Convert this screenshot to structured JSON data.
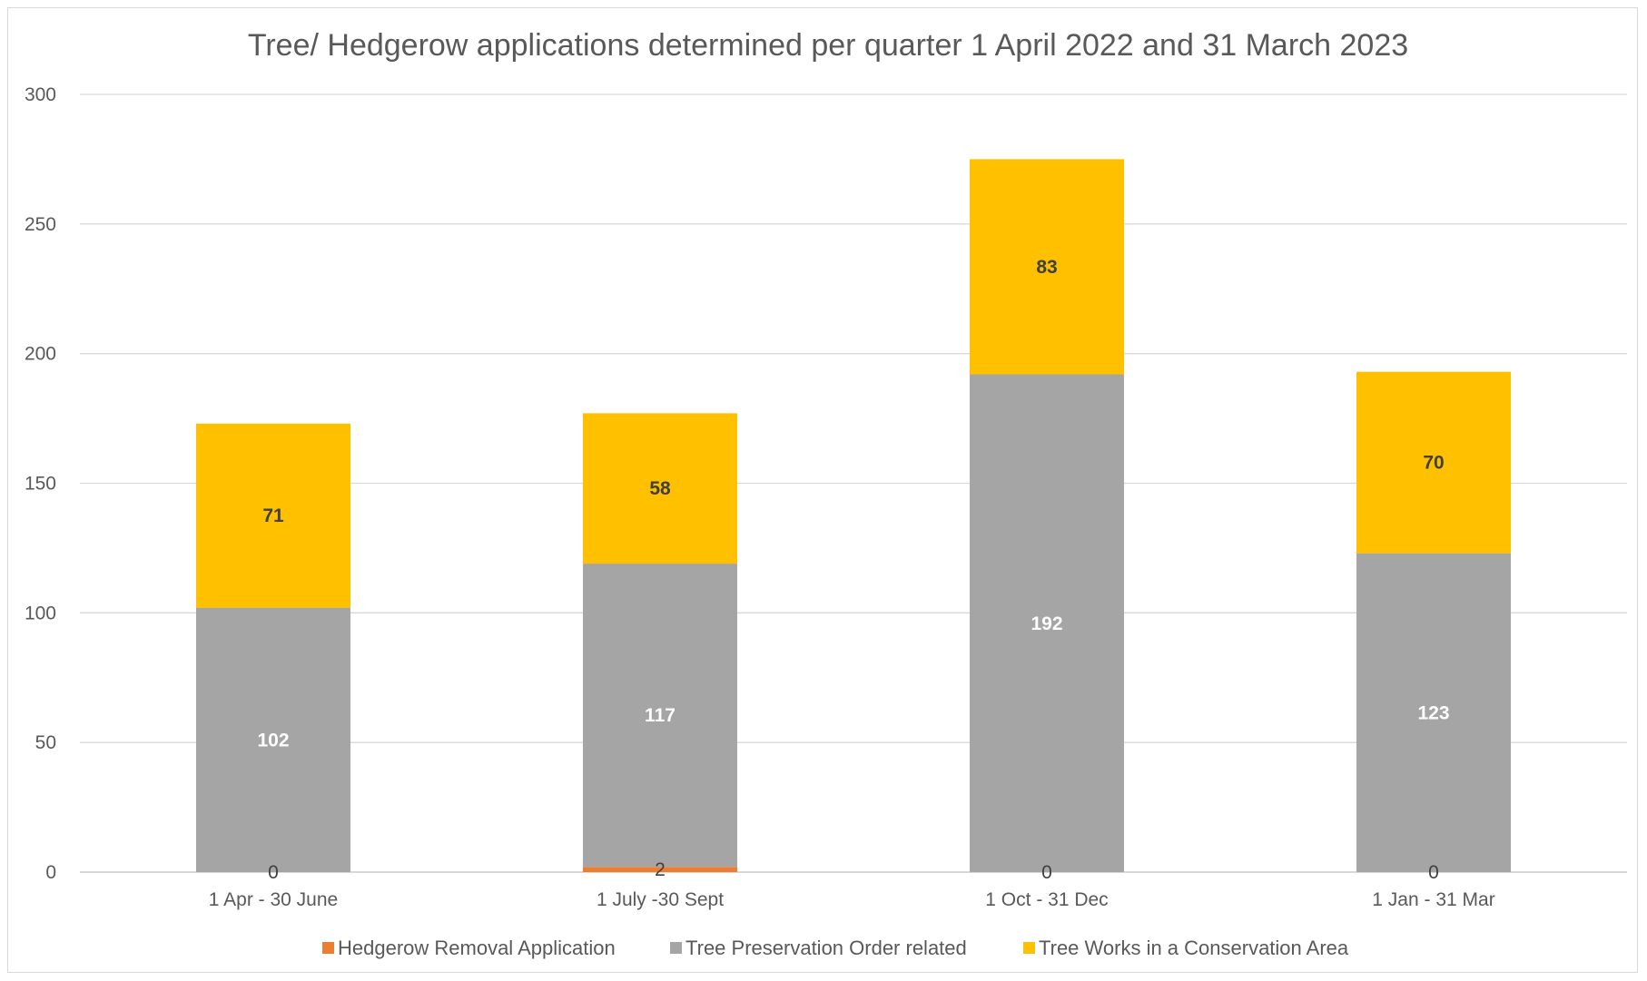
{
  "chart_data": {
    "type": "bar",
    "stacked": true,
    "title": "Tree/ Hedgerow applications determined per quarter 1 April 2022 and 31 March 2023",
    "xlabel": "",
    "ylabel": "",
    "ylim": [
      0,
      300
    ],
    "yticks": [
      0,
      50,
      100,
      150,
      200,
      250,
      300
    ],
    "grid": true,
    "legend_position": "bottom",
    "categories": [
      "1 Apr - 30 June",
      "1 July -30 Sept",
      "1 Oct - 31 Dec",
      "1 Jan - 31 Mar"
    ],
    "series": [
      {
        "name": "Hedgerow Removal Application",
        "values": [
          0,
          2,
          0,
          0
        ],
        "color": "#ed7d31",
        "label_color": "#404040"
      },
      {
        "name": "Tree Preservation Order related",
        "values": [
          102,
          117,
          192,
          123
        ],
        "color": "#a5a5a5",
        "label_color": "#ffffff"
      },
      {
        "name": "Tree Works in a Conservation Area",
        "values": [
          71,
          58,
          83,
          70
        ],
        "color": "#ffc000",
        "label_color": "#404040"
      }
    ]
  }
}
